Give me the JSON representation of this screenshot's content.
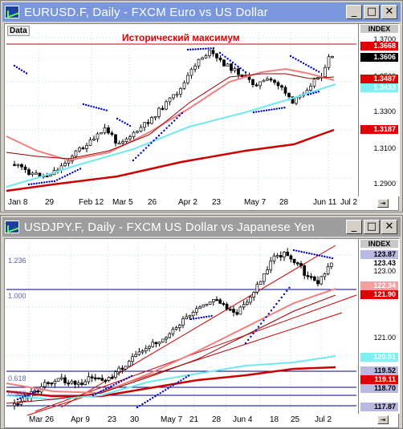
{
  "windows": [
    {
      "title": "EURUSD.F, Daily - FXCM Euro vs US Dollar",
      "data_label": "Data",
      "index_label": "INDEX",
      "annotation": "Исторический максимум",
      "price_ticks": [
        "1.3700",
        "1.3500",
        "1.3300",
        "1.3100",
        "1.2900"
      ],
      "price_tags": [
        {
          "text": "1.3668",
          "bg": "#e00000",
          "fg": "#ffffff"
        },
        {
          "text": "1.3606",
          "bg": "#000000",
          "fg": "#ffffff"
        },
        {
          "text": "1.3487",
          "bg": "#e00000",
          "fg": "#ffffff"
        },
        {
          "text": "1.3433",
          "bg": "#7ff0f0",
          "fg": "#ffffff"
        },
        {
          "text": "1.3187",
          "bg": "#e00000",
          "fg": "#ffffff"
        }
      ],
      "x_ticks": [
        "Jan 8",
        "29",
        "Feb 12",
        "Mar 5",
        "26",
        "Apr 2",
        "23",
        "May 7",
        "28",
        "Jun 11",
        "Jul 2"
      ]
    },
    {
      "title": "USDJPY.F, Daily - FXCM US Dollar vs Japanese Yen",
      "data_label": "Data",
      "index_label": "INDEX",
      "fib_labels": [
        "1.236",
        "1.000",
        "0.618",
        "0.500"
      ],
      "price_ticks": [
        "123.00",
        "121.00",
        "119.00"
      ],
      "price_tags": [
        {
          "text": "123.87",
          "bg": "#b8b8e0",
          "fg": "#000000"
        },
        {
          "text": "123.43",
          "bg": "#ffffff",
          "fg": "#000000"
        },
        {
          "text": "122.34",
          "bg": "#f4a0a0",
          "fg": "#ffffff"
        },
        {
          "text": "121.90",
          "bg": "#e00000",
          "fg": "#ffffff"
        },
        {
          "text": "120.01",
          "bg": "#7ff0f0",
          "fg": "#ffffff"
        },
        {
          "text": "119.52",
          "bg": "#b8b8e0",
          "fg": "#000000"
        },
        {
          "text": "119.11",
          "bg": "#e00000",
          "fg": "#ffffff"
        },
        {
          "text": "118.70",
          "bg": "#b8b8e0",
          "fg": "#000000"
        },
        {
          "text": "117.87",
          "bg": "#b8b8e0",
          "fg": "#000000"
        }
      ],
      "x_ticks": [
        "Mar 26",
        "Apr 9",
        "23",
        "30",
        "May 7",
        "21",
        "28",
        "Jun 4",
        "18",
        "25",
        "Jul 2"
      ]
    }
  ],
  "colors": {
    "sma_slow": "#cc0000",
    "sma_mid": "#f08080",
    "sma_fast": "#990000",
    "cyan": "#70e8f0",
    "psar": "#0000cc",
    "fib": "#000080",
    "hist_max": "#cc0000"
  },
  "icons": [
    "app-chart-icon",
    "minimize-icon",
    "maximize-icon",
    "close-icon",
    "scroll-right-icon"
  ]
}
